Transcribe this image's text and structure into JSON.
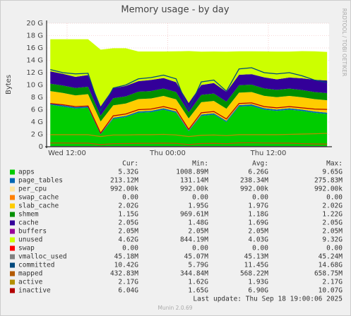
{
  "chart_data": {
    "type": "area",
    "stacked": true,
    "title": "Memory usage - by day",
    "y_label": "Bytes",
    "side_note": "RRDTOOL / TOBI OETIKER",
    "x": [
      10,
      11.5,
      13,
      14.5,
      16,
      17.5,
      19,
      20.5,
      22,
      23.5,
      25,
      26.5,
      28,
      29.5,
      31,
      32.5,
      34,
      35.5,
      37,
      38.5,
      40,
      41.5,
      43
    ],
    "xlim": [
      9.56,
      43.24
    ],
    "xticks": [
      {
        "value": 12,
        "label": "Wed 12:00"
      },
      {
        "value": 24,
        "label": "Thu 00:00"
      },
      {
        "value": 36,
        "label": "Thu 12:00"
      }
    ],
    "ylim": [
      0,
      20
    ],
    "yticks": [
      {
        "value": 0,
        "label": "0"
      },
      {
        "value": 2,
        "label": "2 G"
      },
      {
        "value": 4,
        "label": "4 G"
      },
      {
        "value": 6,
        "label": "6 G"
      },
      {
        "value": 8,
        "label": "8 G"
      },
      {
        "value": 10,
        "label": "10 G"
      },
      {
        "value": 12,
        "label": "12 G"
      },
      {
        "value": 14,
        "label": "14 G"
      },
      {
        "value": 16,
        "label": "16 G"
      },
      {
        "value": 18,
        "label": "18 G"
      },
      {
        "value": 20,
        "label": "20 G"
      }
    ],
    "grid": true,
    "legend_headers": [
      "Cur:",
      "Min:",
      "Avg:",
      "Max:"
    ],
    "series": [
      {
        "name": "apps",
        "color": "#00cc00",
        "kind": "area",
        "values": [
          6.8,
          6.5,
          6.2,
          6.3,
          2.0,
          4.5,
          4.8,
          5.5,
          5.6,
          6.0,
          5.5,
          2.5,
          5.0,
          5.2,
          4.0,
          6.5,
          6.6,
          6.0,
          5.8,
          6.0,
          5.8,
          5.5,
          5.3
        ],
        "stats": [
          "5.32G",
          "1008.89M",
          "6.26G",
          "9.65G"
        ]
      },
      {
        "name": "page_tables",
        "color": "#0066b3",
        "kind": "area",
        "values": [
          0.21,
          0.21,
          0.21,
          0.21,
          0.13,
          0.2,
          0.2,
          0.22,
          0.22,
          0.23,
          0.22,
          0.14,
          0.22,
          0.22,
          0.2,
          0.25,
          0.26,
          0.24,
          0.23,
          0.23,
          0.22,
          0.21,
          0.21
        ],
        "stats": [
          "213.12M",
          "131.14M",
          "238.34M",
          "275.83M"
        ]
      },
      {
        "name": "per_cpu",
        "color": "#ffe5a0",
        "kind": "area",
        "values": [
          0.001,
          0.001,
          0.001,
          0.001,
          0.001,
          0.001,
          0.001,
          0.001,
          0.001,
          0.001,
          0.001,
          0.001,
          0.001,
          0.001,
          0.001,
          0.001,
          0.001,
          0.001,
          0.001,
          0.001,
          0.001,
          0.001,
          0.001
        ],
        "stats": [
          "992.00k",
          "992.00k",
          "992.00k",
          "992.00k"
        ]
      },
      {
        "name": "swap_cache",
        "color": "#ff8000",
        "kind": "area",
        "values": [
          0,
          0,
          0,
          0,
          0,
          0,
          0,
          0,
          0,
          0,
          0,
          0,
          0,
          0,
          0,
          0,
          0,
          0,
          0,
          0,
          0,
          0,
          0
        ],
        "stats": [
          "0.00",
          "0.00",
          "0.00",
          "0.00"
        ]
      },
      {
        "name": "slab_cache",
        "color": "#ffcc00",
        "kind": "area",
        "values": [
          2.0,
          2.0,
          1.9,
          2.0,
          1.95,
          2.0,
          2.0,
          2.0,
          2.0,
          2.0,
          1.95,
          1.95,
          2.0,
          2.0,
          1.95,
          2.0,
          2.0,
          2.0,
          2.0,
          2.0,
          2.0,
          2.0,
          2.02
        ],
        "stats": [
          "2.02G",
          "1.95G",
          "1.97G",
          "2.02G"
        ]
      },
      {
        "name": "shmem",
        "color": "#008f00",
        "kind": "area",
        "values": [
          1.2,
          1.2,
          1.2,
          1.2,
          0.95,
          1.15,
          1.15,
          1.2,
          1.2,
          1.2,
          1.18,
          1.0,
          1.18,
          1.2,
          1.15,
          1.2,
          1.2,
          1.2,
          1.18,
          1.18,
          1.16,
          1.15,
          1.15
        ],
        "stats": [
          "1.15G",
          "969.61M",
          "1.18G",
          "1.22G"
        ]
      },
      {
        "name": "cache",
        "color": "#330099",
        "kind": "area",
        "values": [
          2.0,
          1.9,
          1.8,
          1.9,
          1.5,
          1.6,
          1.7,
          1.7,
          1.8,
          1.7,
          1.6,
          1.5,
          1.6,
          1.7,
          1.6,
          1.7,
          1.7,
          1.8,
          1.7,
          1.8,
          1.9,
          2.0,
          2.05
        ],
        "stats": [
          "2.05G",
          "1.48G",
          "1.69G",
          "2.05G"
        ]
      },
      {
        "name": "buffers",
        "color": "#990099",
        "kind": "area",
        "values": [
          0.002,
          0.002,
          0.002,
          0.002,
          0.002,
          0.002,
          0.002,
          0.002,
          0.002,
          0.002,
          0.002,
          0.002,
          0.002,
          0.002,
          0.002,
          0.002,
          0.002,
          0.002,
          0.002,
          0.002,
          0.002,
          0.002,
          0.002
        ],
        "stats": [
          "2.05M",
          "2.05M",
          "2.05M",
          "2.05M"
        ]
      },
      {
        "name": "unused",
        "color": "#ccff00",
        "kind": "area",
        "values": [
          5.2,
          5.6,
          6.1,
          5.8,
          9.2,
          6.5,
          6.1,
          4.8,
          4.6,
          4.3,
          5.0,
          8.4,
          5.4,
          5.1,
          6.5,
          3.8,
          3.7,
          4.2,
          4.5,
          4.2,
          4.4,
          4.6,
          4.62
        ],
        "stats": [
          "4.62G",
          "844.19M",
          "4.03G",
          "9.32G"
        ]
      },
      {
        "name": "swap",
        "color": "#ff0000",
        "kind": "area",
        "values": [
          0,
          0,
          0,
          0,
          0,
          0,
          0,
          0,
          0,
          0,
          0,
          0,
          0,
          0,
          0,
          0,
          0,
          0,
          0,
          0,
          0,
          0,
          0
        ],
        "stats": [
          "0.00",
          "0.00",
          "0.00",
          "0.00"
        ]
      },
      {
        "name": "vmalloc_used",
        "color": "#808080",
        "kind": "line",
        "values": [
          0.045,
          0.045,
          0.045,
          0.045,
          0.045,
          0.045,
          0.045,
          0.045,
          0.045,
          0.045,
          0.045,
          0.045,
          0.045,
          0.045,
          0.045,
          0.045,
          0.045,
          0.045,
          0.045,
          0.045,
          0.045,
          0.045,
          0.045
        ],
        "stats": [
          "45.18M",
          "45.07M",
          "45.13M",
          "45.24M"
        ]
      },
      {
        "name": "committed",
        "color": "#00487d",
        "kind": "line",
        "values": [
          12.5,
          12.0,
          11.8,
          11.9,
          5.8,
          9.5,
          10.0,
          11.0,
          11.2,
          11.6,
          11.0,
          6.0,
          10.5,
          10.8,
          9.0,
          12.6,
          12.8,
          12.0,
          11.8,
          12.0,
          11.5,
          10.8,
          10.42
        ],
        "stats": [
          "10.42G",
          "5.79G",
          "11.45G",
          "14.68G"
        ]
      },
      {
        "name": "mapped",
        "color": "#b35a00",
        "kind": "line",
        "values": [
          0.6,
          0.6,
          0.58,
          0.58,
          0.35,
          0.5,
          0.52,
          0.55,
          0.56,
          0.58,
          0.55,
          0.36,
          0.52,
          0.55,
          0.5,
          0.62,
          0.64,
          0.6,
          0.58,
          0.58,
          0.5,
          0.45,
          0.43
        ],
        "stats": [
          "432.83M",
          "344.84M",
          "568.22M",
          "658.75M"
        ]
      },
      {
        "name": "active",
        "color": "#b38f00",
        "kind": "line",
        "values": [
          1.95,
          1.95,
          1.95,
          1.95,
          1.65,
          1.9,
          1.9,
          1.95,
          1.95,
          2.0,
          1.9,
          1.65,
          1.85,
          1.9,
          1.8,
          1.95,
          1.95,
          1.95,
          1.95,
          2.0,
          2.05,
          2.1,
          2.17
        ],
        "stats": [
          "2.17G",
          "1.62G",
          "1.93G",
          "2.17G"
        ]
      },
      {
        "name": "inactive",
        "color": "#b30000",
        "kind": "line",
        "values": [
          7.0,
          6.8,
          6.5,
          6.6,
          2.2,
          5.0,
          5.3,
          6.0,
          6.1,
          6.5,
          6.0,
          2.8,
          5.5,
          5.7,
          4.5,
          7.0,
          7.1,
          6.5,
          6.3,
          6.5,
          6.3,
          6.1,
          6.04
        ],
        "stats": [
          "6.04G",
          "1.65G",
          "6.90G",
          "10.07G"
        ]
      }
    ],
    "last_update": "Last update: Thu Sep 18 19:00:06 2025",
    "footer": "Munin 2.0.69"
  }
}
